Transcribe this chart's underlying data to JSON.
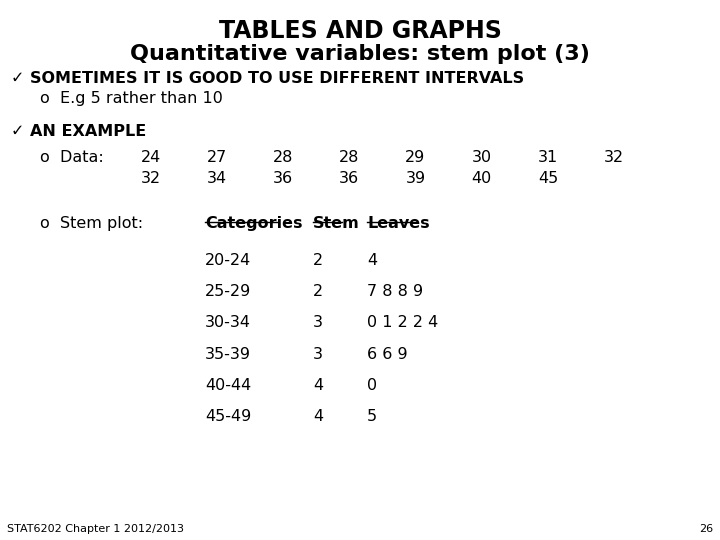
{
  "title1": "TABLES AND GRAPHS",
  "title2": "Quantitative variables: stem plot (3)",
  "bullet1": "✓ SOMETIMES IT IS GOOD TO USE DIFFERENT INTERVALS",
  "sub_bullet1": "o  E.g 5 rather than 10",
  "bullet2": "✓ AN EXAMPLE",
  "data_label": "o  Data:",
  "data_row1": [
    "24",
    "27",
    "28",
    "28",
    "29",
    "30",
    "31",
    "32"
  ],
  "data_row2": [
    "32",
    "34",
    "36",
    "36",
    "39",
    "40",
    "45",
    ""
  ],
  "stem_label": "o  Stem plot:",
  "table_headers": [
    "Categories",
    "Stem",
    "Leaves"
  ],
  "table_rows": [
    [
      "20-24",
      "2",
      "4"
    ],
    [
      "25-29",
      "2",
      "7 8 8 9"
    ],
    [
      "30-34",
      "3",
      "0 1 2 2 4"
    ],
    [
      "35-39",
      "3",
      "6 6 9"
    ],
    [
      "40-44",
      "4",
      "0"
    ],
    [
      "45-49",
      "4",
      "5"
    ]
  ],
  "footer": "STAT6202 Chapter 1 2012/2013",
  "page_num": "26",
  "bg_color": "#ffffff",
  "text_color": "#000000",
  "title_fontsize": 17,
  "subtitle_fontsize": 16,
  "body_fontsize": 11.5,
  "small_fontsize": 8
}
